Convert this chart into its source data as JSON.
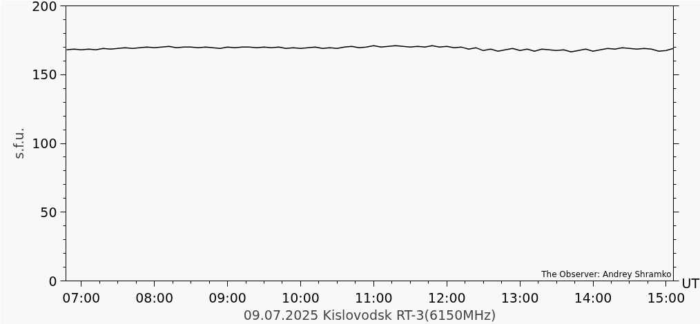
{
  "chart_data": {
    "type": "line",
    "xlabel": "09.07.2025 Kislovodsk RT-3(6150MHz)",
    "ylabel": "s.f.u.",
    "annotations": [
      "The Observer: Andrey Shramko",
      "UT"
    ],
    "x": [
      6.8,
      6.9,
      7.0,
      7.1,
      7.2,
      7.3,
      7.4,
      7.5,
      7.6,
      7.7,
      7.8,
      7.9,
      8.0,
      8.1,
      8.2,
      8.3,
      8.4,
      8.5,
      8.6,
      8.7,
      8.8,
      8.9,
      9.0,
      9.1,
      9.2,
      9.3,
      9.4,
      9.5,
      9.6,
      9.7,
      9.8,
      9.9,
      10.0,
      10.1,
      10.2,
      10.3,
      10.4,
      10.5,
      10.6,
      10.7,
      10.8,
      10.9,
      11.0,
      11.1,
      11.2,
      11.3,
      11.4,
      11.5,
      11.6,
      11.7,
      11.8,
      11.9,
      12.0,
      12.1,
      12.2,
      12.3,
      12.4,
      12.5,
      12.6,
      12.7,
      12.8,
      12.9,
      13.0,
      13.1,
      13.2,
      13.3,
      13.4,
      13.5,
      13.6,
      13.7,
      13.8,
      13.9,
      14.0,
      14.1,
      14.2,
      14.3,
      14.4,
      14.5,
      14.6,
      14.7,
      14.8,
      14.9,
      15.0,
      15.1
    ],
    "series": [
      {
        "color": "#000000",
        "values": [
          168,
          168.5,
          168,
          168.5,
          168,
          169,
          168.5,
          169,
          169.5,
          169,
          169.5,
          170,
          169.5,
          170,
          170.5,
          169.5,
          170,
          170,
          169.5,
          170,
          169.5,
          169,
          170,
          169.5,
          170,
          170,
          169.5,
          170,
          169.5,
          170,
          169,
          169.5,
          169,
          169.5,
          170,
          169,
          169.5,
          169,
          170,
          170.5,
          169.5,
          170,
          171,
          170,
          170.5,
          171,
          170.5,
          170,
          170.5,
          170,
          171,
          170,
          170.5,
          169.5,
          170,
          168.5,
          169.5,
          167.5,
          168.5,
          167,
          168,
          169,
          167.5,
          168.5,
          167,
          168.5,
          168,
          167.5,
          168,
          166.5,
          167.5,
          168.5,
          167,
          168,
          169,
          168.5,
          169.5,
          169,
          168.5,
          169,
          168.5,
          167,
          167.5,
          169
        ]
      }
    ],
    "xlim": [
      6.79,
      15.1
    ],
    "ylim": [
      0,
      200
    ],
    "xticks": [
      {
        "value": 7,
        "label": "07:00"
      },
      {
        "value": 8,
        "label": "08:00"
      },
      {
        "value": 9,
        "label": "09:00"
      },
      {
        "value": 10,
        "label": "10:00"
      },
      {
        "value": 11,
        "label": "11:00"
      },
      {
        "value": 12,
        "label": "12:00"
      },
      {
        "value": 13,
        "label": "13:00"
      },
      {
        "value": 14,
        "label": "14:00"
      },
      {
        "value": 15,
        "label": "15:00"
      }
    ],
    "yticks": [
      0,
      50,
      100,
      150,
      200
    ],
    "grid": false,
    "marker": "none",
    "line_style": "solid"
  }
}
